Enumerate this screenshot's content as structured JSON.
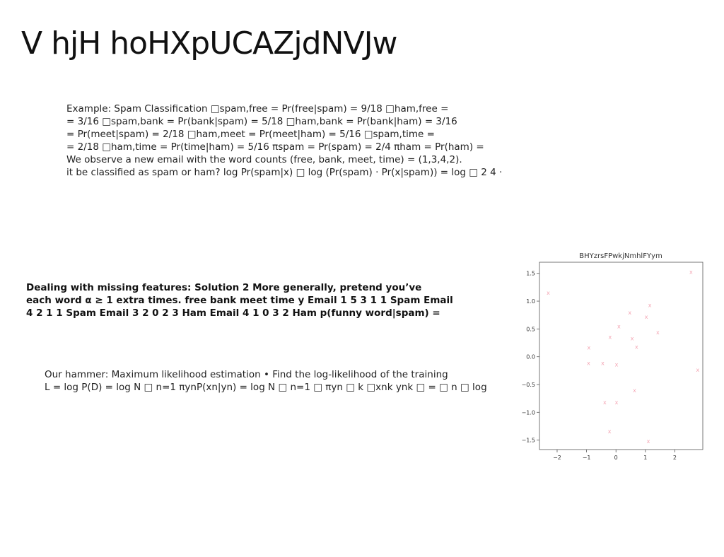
{
  "slide": {
    "title": "V hjH hoHXpUCAZjdNVJw"
  },
  "spam_example": {
    "lines": [
      "Example: Spam Classification □spam,free = Pr(free|spam) = 9/18 □ham,free =",
      "= 3/16 □spam,bank = Pr(bank|spam) = 5/18 □ham,bank = Pr(bank|ham) = 3/16",
      "= Pr(meet|spam) = 2/18 □ham,meet = Pr(meet|ham) = 5/16 □spam,time =",
      "= 2/18 □ham,time = Pr(time|ham) = 5/16 πspam = Pr(spam) = 2/4 πham = Pr(ham) =",
      "We observe a new email with the word counts (free, bank, meet, time) = (1,3,4,2).",
      "it be classified as spam or ham? log Pr(spam|x) □ log (Pr(spam) · Pr(x|spam)) = log □ 2 4 ·"
    ]
  },
  "missing_features": {
    "lines": [
      "Dealing with missing features: Solution 2 More generally, pretend you’ve",
      "each word α ≥ 1 extra times. free bank meet time y Email 1 5 3 1 1 Spam Email",
      "4 2 1 1 Spam Email 3 2 0 2 3 Ham Email 4 1 0 3 2 Ham p(funny word|spam) ="
    ]
  },
  "hammer": {
    "lines": [
      "Our hammer: Maximum likelihood estimation • Find the log-likelihood of the training",
      "L = log P(D) = log N □ n=1 πynP(xn|yn) = log N □ n=1 □ πyn □ k □xnk ynk □ = □ n □ log"
    ]
  },
  "chart_data": {
    "type": "scatter",
    "title": "BHYzrsFPwkjNmhlFYym",
    "xlabel": "",
    "ylabel": "",
    "xlim": [
      -2.6,
      2.95
    ],
    "ylim": [
      -1.67,
      1.7
    ],
    "xticks": [
      -2,
      -1,
      0,
      1,
      2
    ],
    "xtick_labels": [
      "−2",
      "−1",
      "0",
      "1",
      "2"
    ],
    "yticks": [
      1.5,
      1.0,
      0.5,
      0.0,
      -0.5,
      -1.0,
      -1.5
    ],
    "ytick_labels": [
      "1.5",
      "1.0",
      "0.5",
      "0.0",
      "−0.5",
      "−1.0",
      "−1.5"
    ],
    "grid": false,
    "marker": "x",
    "marker_color": "#f4a6b4",
    "series": [
      {
        "points": [
          [
            -2.3,
            1.15
          ],
          [
            2.55,
            1.53
          ],
          [
            1.15,
            0.93
          ],
          [
            0.47,
            0.8
          ],
          [
            1.03,
            0.72
          ],
          [
            0.1,
            0.55
          ],
          [
            1.42,
            0.44
          ],
          [
            -0.2,
            0.36
          ],
          [
            0.55,
            0.33
          ],
          [
            -0.92,
            0.17
          ],
          [
            0.7,
            0.18
          ],
          [
            -0.93,
            -0.11
          ],
          [
            -0.45,
            -0.11
          ],
          [
            0.02,
            -0.14
          ],
          [
            2.78,
            -0.23
          ],
          [
            0.63,
            -0.6
          ],
          [
            -0.38,
            -0.82
          ],
          [
            0.02,
            -0.82
          ],
          [
            -0.22,
            -1.34
          ],
          [
            1.1,
            -1.52
          ]
        ]
      }
    ]
  }
}
